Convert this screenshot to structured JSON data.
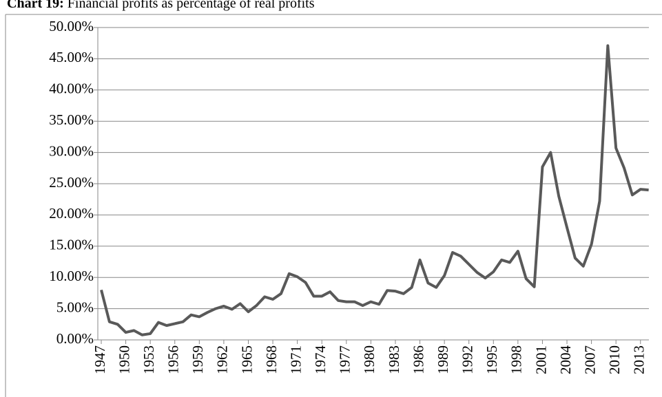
{
  "chart_data": {
    "type": "line",
    "title_label": "Chart 19:",
    "title": "Financial profits as percentage of real profits",
    "categories": [
      "1947",
      null,
      null,
      "1950",
      null,
      null,
      "1953",
      null,
      null,
      "1956",
      null,
      null,
      "1959",
      null,
      null,
      "1962",
      null,
      null,
      "1965",
      null,
      null,
      "1968",
      null,
      null,
      "1971",
      null,
      null,
      "1974",
      null,
      null,
      "1977",
      null,
      null,
      "1980",
      null,
      null,
      "1983",
      null,
      null,
      "1986",
      null,
      null,
      "1989",
      null,
      null,
      "1992",
      null,
      null,
      "1995",
      null,
      null,
      "1998",
      null,
      null,
      "2001",
      null,
      null,
      "2004",
      null,
      null,
      "2007",
      null,
      null,
      "2010",
      null,
      null,
      "2013",
      null
    ],
    "series": [
      {
        "color": "#595959",
        "values": [
          8.0,
          2.9,
          2.5,
          1.2,
          1.5,
          0.8,
          1.0,
          2.8,
          2.3,
          2.6,
          2.9,
          4.0,
          3.7,
          4.4,
          5.0,
          5.4,
          4.9,
          5.8,
          4.5,
          5.5,
          6.9,
          6.5,
          7.4,
          10.6,
          10.1,
          9.2,
          7.0,
          7.0,
          7.7,
          6.3,
          6.1,
          6.1,
          5.5,
          6.1,
          5.7,
          7.9,
          7.8,
          7.4,
          8.4,
          12.8,
          9.1,
          8.4,
          10.3,
          14.0,
          13.4,
          12.1,
          10.8,
          9.9,
          10.9,
          12.8,
          12.4,
          14.2,
          9.8,
          8.5,
          27.7,
          30.0,
          23.0,
          18.0,
          13.1,
          11.8,
          15.3,
          22.2,
          47.1,
          30.7,
          27.5,
          23.2,
          24.1,
          24.0
        ]
      }
    ],
    "ylim": [
      0,
      50
    ],
    "yticks": [
      {
        "value": 0,
        "label": "0.00%"
      },
      {
        "value": 5,
        "label": "5.00%"
      },
      {
        "value": 10,
        "label": "10.00%"
      },
      {
        "value": 15,
        "label": "15.00%"
      },
      {
        "value": 20,
        "label": "20.00%"
      },
      {
        "value": 25,
        "label": "25.00%"
      },
      {
        "value": 30,
        "label": "30.00%"
      },
      {
        "value": 35,
        "label": "35.00%"
      },
      {
        "value": 40,
        "label": "40.00%"
      },
      {
        "value": 45,
        "label": "45.00%"
      },
      {
        "value": 50,
        "label": "50.00%"
      }
    ],
    "grid": true
  }
}
